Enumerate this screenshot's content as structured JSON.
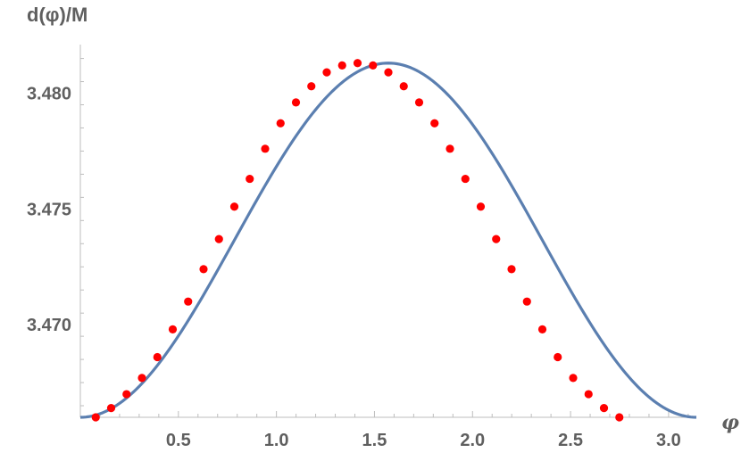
{
  "chart_data": {
    "type": "line",
    "title": "",
    "ylabel": "d(φ)/M",
    "xlabel": "φ",
    "xlim": [
      0,
      3.1416
    ],
    "ylim": [
      3.466,
      3.4821
    ],
    "x_ticks": [
      0.5,
      1.0,
      1.5,
      2.0,
      2.5,
      3.0
    ],
    "x_tick_labels": [
      "0.5",
      "1.0",
      "1.5",
      "2.0",
      "2.5",
      "3.0"
    ],
    "y_ticks": [
      3.47,
      3.475,
      3.48
    ],
    "y_tick_labels": [
      "3.470",
      "3.475",
      "3.480"
    ],
    "grid": false,
    "colors": {
      "line": "#5b7fb0",
      "points": "#ff0000",
      "axis": "#bdbdbd",
      "text": "#5f5f5f"
    },
    "series": [
      {
        "kind": "line",
        "y_min": 3.466,
        "y_max": 3.4813,
        "x_range": [
          0,
          3.1416
        ]
      },
      {
        "kind": "points",
        "points": [
          [
            0.0785,
            3.466
          ],
          [
            0.1571,
            3.4664
          ],
          [
            0.2356,
            3.467
          ],
          [
            0.3142,
            3.4677
          ],
          [
            0.3927,
            3.4686
          ],
          [
            0.4712,
            3.4698
          ],
          [
            0.5498,
            3.471
          ],
          [
            0.6283,
            3.4724
          ],
          [
            0.7069,
            3.4737
          ],
          [
            0.7854,
            3.4751
          ],
          [
            0.8639,
            3.4763
          ],
          [
            0.9425,
            3.4776
          ],
          [
            1.021,
            3.4787
          ],
          [
            1.0996,
            3.4796
          ],
          [
            1.1781,
            3.4803
          ],
          [
            1.2566,
            3.4809
          ],
          [
            1.3352,
            3.4812
          ],
          [
            1.4137,
            3.4813
          ],
          [
            1.4923,
            3.4812
          ],
          [
            1.5708,
            3.4809
          ],
          [
            1.6493,
            3.4803
          ],
          [
            1.7279,
            3.4796
          ],
          [
            1.8064,
            3.4787
          ],
          [
            1.885,
            3.4776
          ],
          [
            1.9635,
            3.4763
          ],
          [
            2.042,
            3.4751
          ],
          [
            2.1206,
            3.4737
          ],
          [
            2.1991,
            3.4724
          ],
          [
            2.2777,
            3.471
          ],
          [
            2.3562,
            3.4698
          ],
          [
            2.4347,
            3.4686
          ],
          [
            2.5133,
            3.4677
          ],
          [
            2.5918,
            3.467
          ],
          [
            2.6704,
            3.4664
          ],
          [
            2.7489,
            3.466
          ]
        ]
      }
    ]
  }
}
